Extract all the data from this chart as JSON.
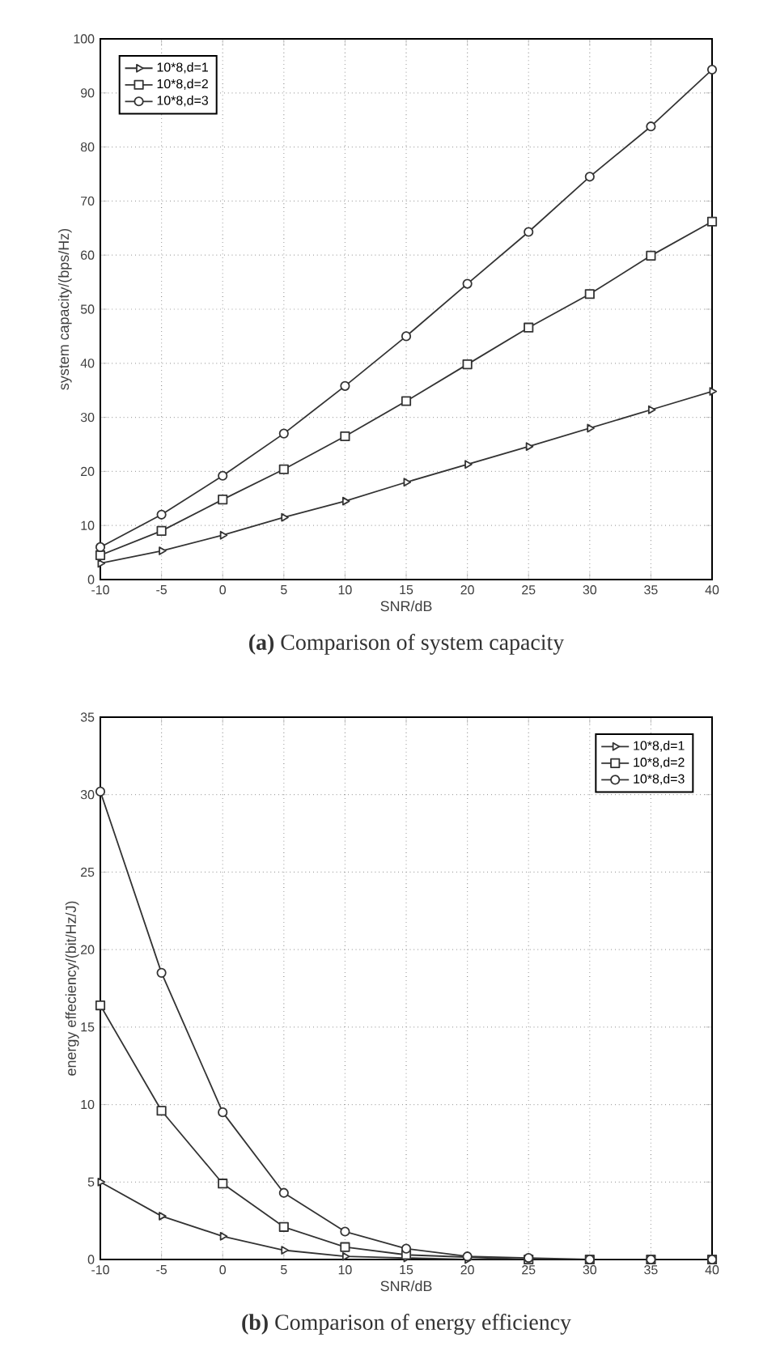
{
  "chart_data": [
    {
      "type": "line",
      "title": "**(a)** Comparison of system capacity",
      "xlabel": "SNR/dB",
      "ylabel": "system capacity/(bps/Hz)",
      "x": [
        -10,
        -5,
        0,
        5,
        10,
        15,
        20,
        25,
        30,
        35,
        40
      ],
      "series": [
        {
          "name": "10*8,d=1",
          "color": "#333333",
          "marker": "triangle",
          "values": [
            3,
            5.3,
            8.2,
            11.5,
            14.5,
            18,
            21.3,
            24.6,
            28,
            31.4,
            34.8
          ]
        },
        {
          "name": "10*8,d=2",
          "color": "#333333",
          "marker": "square",
          "values": [
            4.5,
            9,
            14.8,
            20.4,
            26.5,
            33,
            39.8,
            46.6,
            52.8,
            59.9,
            66.2
          ]
        },
        {
          "name": "10*8,d=3",
          "color": "#333333",
          "marker": "circle",
          "values": [
            6,
            12,
            19.2,
            27,
            35.8,
            45,
            54.7,
            64.3,
            74.5,
            83.8,
            94.3
          ]
        }
      ],
      "xlim": [
        -10,
        40
      ],
      "xticks": [
        -10,
        -5,
        0,
        5,
        10,
        15,
        20,
        25,
        30,
        35,
        40
      ],
      "ylim": [
        0,
        100
      ],
      "yticks": [
        0,
        10,
        20,
        30,
        40,
        50,
        60,
        70,
        80,
        90,
        100
      ],
      "grid": true,
      "legend": "top left",
      "line_style": "solid"
    },
    {
      "type": "line",
      "title": "**(b)** Comparison of energy efficiency",
      "xlabel": "SNR/dB",
      "ylabel": "energy effeciency/(bit/Hz/J)",
      "x": [
        -10,
        -5,
        0,
        5,
        10,
        15,
        20,
        25,
        30,
        35,
        40
      ],
      "series": [
        {
          "name": "10*8,d=1",
          "color": "#333333",
          "marker": "triangle",
          "values": [
            5,
            2.8,
            1.5,
            0.6,
            0.2,
            0.1,
            0,
            0,
            0,
            0,
            0
          ]
        },
        {
          "name": "10*8,d=2",
          "color": "#333333",
          "marker": "square",
          "values": [
            16.4,
            9.6,
            4.9,
            2.1,
            0.8,
            0.3,
            null,
            0,
            0,
            0,
            0
          ]
        },
        {
          "name": "10*8,d=3",
          "color": "#333333",
          "marker": "circle",
          "values": [
            30.2,
            18.5,
            9.5,
            4.3,
            1.8,
            0.7,
            0.2,
            0.1,
            0,
            0,
            0
          ]
        }
      ],
      "xlim": [
        -10,
        40
      ],
      "xticks": [
        -10,
        -5,
        0,
        5,
        10,
        15,
        20,
        25,
        30,
        35,
        40
      ],
      "ylim": [
        0,
        35
      ],
      "yticks": [
        0,
        5,
        10,
        15,
        20,
        25,
        30,
        35
      ],
      "grid": true,
      "legend": "top right",
      "line_style": "solid"
    }
  ]
}
